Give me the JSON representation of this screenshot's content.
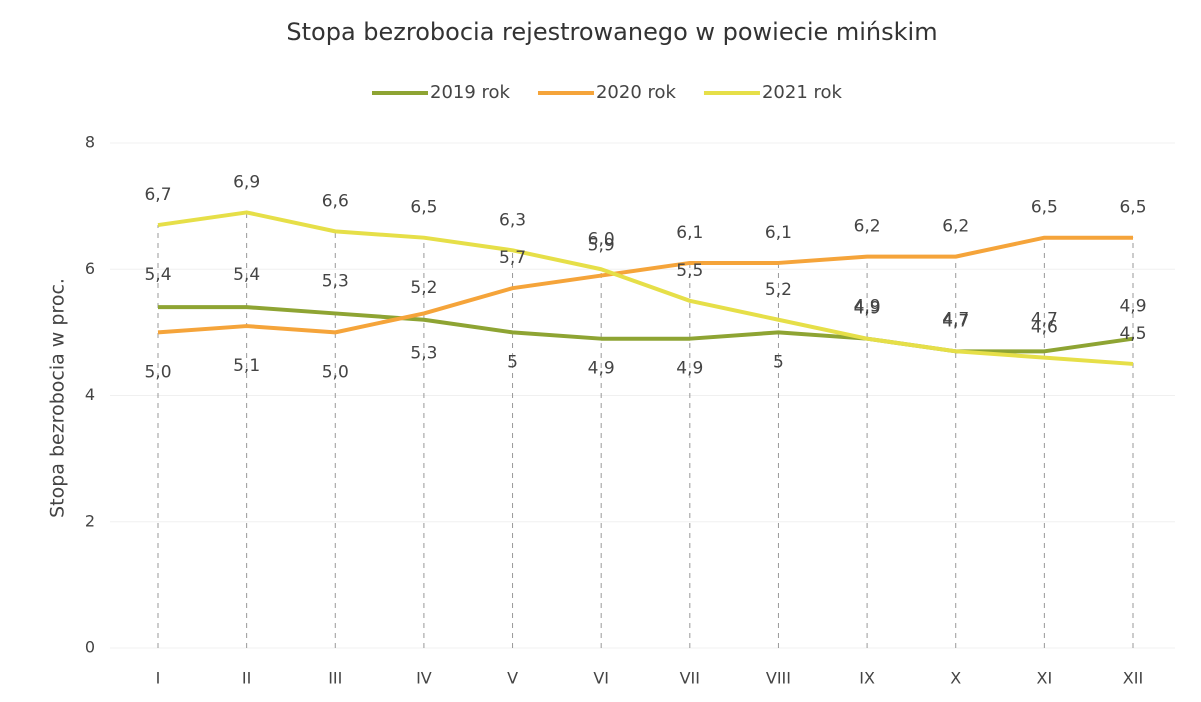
{
  "chart_data": {
    "type": "line",
    "title": "Stopa bezrobocia rejestrowanego w powiecie mińskim",
    "y_label": "Stopa bezrobocia w proc.",
    "categories": [
      "I",
      "II",
      "III",
      "IV",
      "V",
      "VI",
      "VII",
      "VIII",
      "IX",
      "X",
      "XI",
      "XII"
    ],
    "series": [
      {
        "name": "2019 rok",
        "color": "#8ea433",
        "values": [
          5.4,
          5.4,
          5.3,
          5.2,
          5,
          4.9,
          4.9,
          5,
          4.9,
          4.7,
          4.7,
          4.9
        ],
        "value_labels": [
          "5,4",
          "5,4",
          "5,3",
          "5,2",
          "5",
          "4,9",
          "4,9",
          "5",
          "4,9",
          "4,7",
          "4,7",
          "4,9"
        ]
      },
      {
        "name": "2020 rok",
        "color": "#f5a43a",
        "values": [
          5.0,
          5.1,
          5.0,
          5.3,
          5.7,
          5.9,
          6.1,
          6.1,
          6.2,
          6.2,
          6.5,
          6.5
        ],
        "value_labels": [
          "5,0",
          "5,1",
          "5,0",
          "5,3",
          "5,7",
          "5,9",
          "6,1",
          "6,1",
          "6,2",
          "6,2",
          "6,5",
          "6,5"
        ]
      },
      {
        "name": "2021 rok",
        "color": "#e6df48",
        "values": [
          6.7,
          6.9,
          6.6,
          6.5,
          6.3,
          6.0,
          5.5,
          5.2,
          4.9,
          4.7,
          4.6,
          4.5
        ],
        "value_labels": [
          "6,7",
          "6,9",
          "6,6",
          "6,5",
          "6,3",
          "6,0",
          "5,5",
          "5,2",
          "4,9",
          "4,7",
          "4,6",
          "4,5"
        ]
      }
    ],
    "ylim": [
      0,
      8
    ],
    "yticks": [
      0,
      2,
      4,
      6,
      8
    ],
    "grid": true,
    "legend": "top"
  }
}
